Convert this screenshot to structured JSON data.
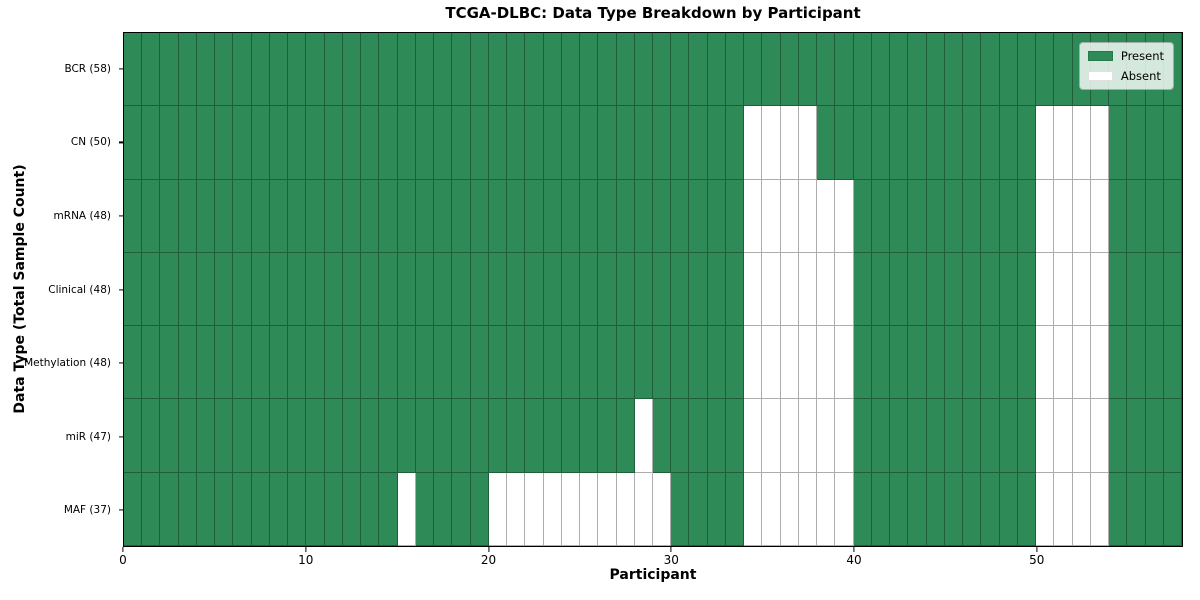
{
  "chart_data": {
    "type": "heatmap",
    "title": "TCGA-DLBC: Data Type Breakdown by Participant",
    "xlabel": "Participant",
    "ylabel": "Data Type (Total Sample Count)",
    "n_participants": 58,
    "x_range": [
      0,
      58
    ],
    "x_ticks": [
      0,
      10,
      20,
      30,
      40,
      50
    ],
    "grid": "cell-edges",
    "legend_position": "upper-right-inside",
    "colors": {
      "present": "#2E8B57",
      "absent": "#FFFFFF",
      "cell_edge": "rgba(0,0,0,0.32)",
      "spine": "#000000"
    },
    "legend": [
      {
        "label": "Present",
        "color": "#2E8B57"
      },
      {
        "label": "Absent",
        "color": "#FFFFFF"
      }
    ],
    "rows": [
      {
        "label": "BCR (58)",
        "data_type": "BCR",
        "present_count": 58,
        "absent_participants": []
      },
      {
        "label": "CN (50)",
        "data_type": "CN",
        "present_count": 50,
        "absent_participants": [
          34,
          35,
          36,
          37,
          50,
          51,
          52,
          53
        ]
      },
      {
        "label": "mRNA (48)",
        "data_type": "mRNA",
        "present_count": 48,
        "absent_participants": [
          34,
          35,
          36,
          37,
          38,
          39,
          50,
          51,
          52,
          53
        ]
      },
      {
        "label": "Clinical (48)",
        "data_type": "Clinical",
        "present_count": 48,
        "absent_participants": [
          34,
          35,
          36,
          37,
          38,
          39,
          50,
          51,
          52,
          53
        ]
      },
      {
        "label": "Methylation (48)",
        "data_type": "Methylation",
        "present_count": 48,
        "absent_participants": [
          34,
          35,
          36,
          37,
          38,
          39,
          50,
          51,
          52,
          53
        ]
      },
      {
        "label": "miR (47)",
        "data_type": "miR",
        "present_count": 47,
        "absent_participants": [
          28,
          34,
          35,
          36,
          37,
          38,
          39,
          50,
          51,
          52,
          53
        ]
      },
      {
        "label": "MAF (37)",
        "data_type": "MAF",
        "present_count": 37,
        "absent_participants": [
          15,
          20,
          21,
          22,
          23,
          24,
          25,
          26,
          27,
          28,
          29,
          34,
          35,
          36,
          37,
          38,
          39,
          50,
          51,
          52,
          53
        ]
      }
    ]
  }
}
